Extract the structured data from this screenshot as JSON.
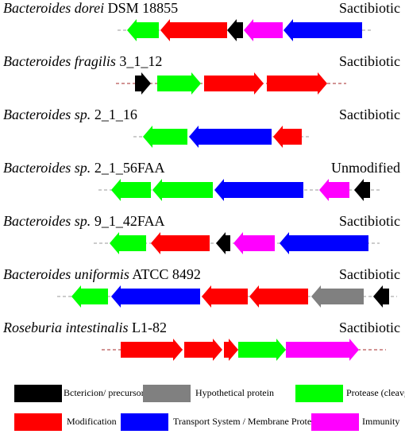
{
  "colors": {
    "precursor": "#000000",
    "hypothetical": "#808080",
    "protease": "#00ff00",
    "modification": "#ff0000",
    "transport": "#0000ff",
    "immunity": "#ff00ff"
  },
  "clusters": [
    {
      "species": "Bacteroides dorei",
      "strain": " DSM 18855",
      "type": "Sactibiotic",
      "line_color": "#999999",
      "genes": [
        {
          "t": "protease",
          "d": "left"
        },
        {
          "t": "modification",
          "d": "left"
        },
        {
          "t": "precursor",
          "d": "left"
        },
        {
          "t": "immunity",
          "d": "left"
        },
        {
          "t": "transport",
          "d": "left"
        }
      ]
    },
    {
      "species": "Bacteroides fragilis",
      "strain": " 3_1_12",
      "type": "Sactibiotic",
      "line_color": "#a52a2a",
      "genes": [
        {
          "t": "precursor",
          "d": "right"
        },
        {
          "t": "protease",
          "d": "right"
        },
        {
          "t": "modification",
          "d": "right"
        },
        {
          "t": "modification",
          "d": "right"
        }
      ]
    },
    {
      "species": "Bacteroides sp.",
      "strain": " 2_1_16",
      "type": "Sactibiotic",
      "line_color": "#999999",
      "genes": [
        {
          "t": "protease",
          "d": "left"
        },
        {
          "t": "transport",
          "d": "left"
        },
        {
          "t": "modification",
          "d": "left"
        }
      ]
    },
    {
      "species": "Bacteroides sp.",
      "strain": " 2_1_56FAA",
      "type": "Unmodified",
      "line_color": "#999999",
      "genes": [
        {
          "t": "protease",
          "d": "left"
        },
        {
          "t": "protease",
          "d": "left"
        },
        {
          "t": "transport",
          "d": "left"
        },
        {
          "t": "immunity",
          "d": "left"
        },
        {
          "t": "precursor",
          "d": "left"
        }
      ]
    },
    {
      "species": "Bacteroides sp.",
      "strain": " 9_1_42FAA",
      "type": "Sactibiotic",
      "line_color": "#999999",
      "genes": [
        {
          "t": "protease",
          "d": "left"
        },
        {
          "t": "modification",
          "d": "left"
        },
        {
          "t": "precursor",
          "d": "left"
        },
        {
          "t": "immunity",
          "d": "left"
        },
        {
          "t": "transport",
          "d": "left"
        }
      ]
    },
    {
      "species": "Bacteroides uniformis",
      "strain": " ATCC 8492",
      "type": "Sactibiotic",
      "line_color": "#999999",
      "genes": [
        {
          "t": "protease",
          "d": "left"
        },
        {
          "t": "transport",
          "d": "left"
        },
        {
          "t": "modification",
          "d": "left"
        },
        {
          "t": "modification",
          "d": "left"
        },
        {
          "t": "hypothetical",
          "d": "left"
        },
        {
          "t": "precursor",
          "d": "left"
        }
      ]
    },
    {
      "species": "Roseburia intestinalis",
      "strain": " L1-82",
      "type": "Sactibiotic",
      "line_color": "#a52a2a",
      "genes": [
        {
          "t": "modification",
          "d": "right"
        },
        {
          "t": "modification",
          "d": "right"
        },
        {
          "t": "modification",
          "d": "right"
        },
        {
          "t": "protease",
          "d": "right"
        },
        {
          "t": "immunity",
          "d": "right"
        }
      ]
    }
  ],
  "legend": [
    {
      "key": "precursor",
      "label": "Bctericion/ precursor peptide"
    },
    {
      "key": "hypothetical",
      "label": "Hypothetical protein"
    },
    {
      "key": "protease",
      "label": "Protease (cleavge)"
    },
    {
      "key": "modification",
      "label": "Modification"
    },
    {
      "key": "transport",
      "label": "Transport System / Membrane Proteins"
    },
    {
      "key": "immunity",
      "label": "Immunity"
    }
  ]
}
